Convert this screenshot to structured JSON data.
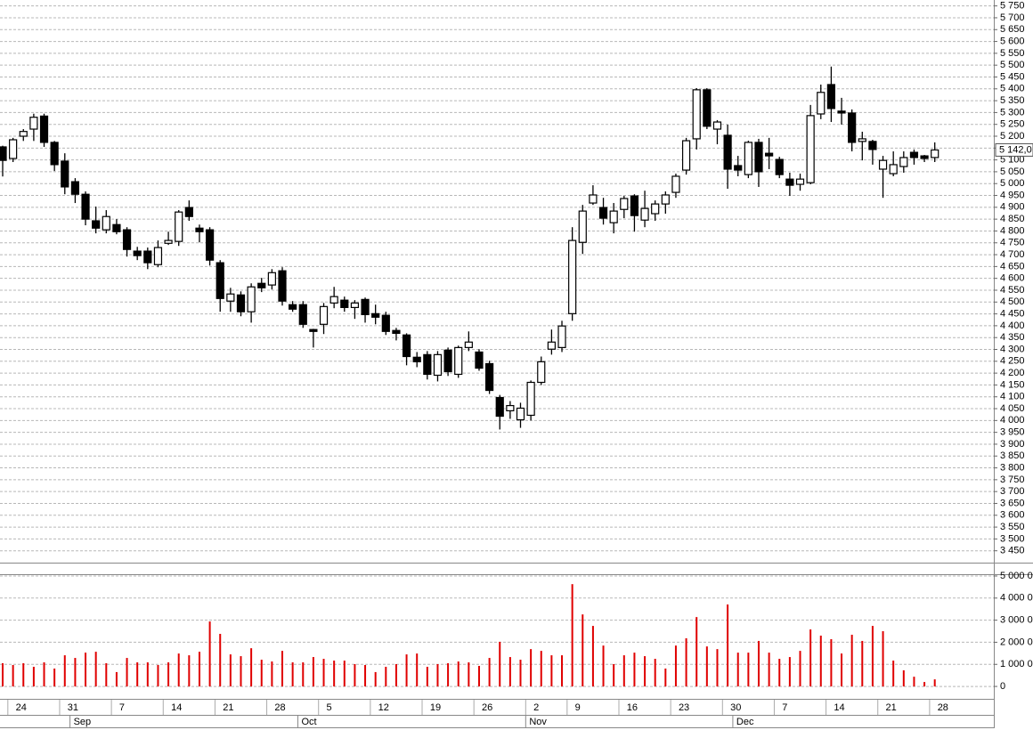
{
  "chart_data": [
    {
      "type": "candlestick",
      "up_color": "#ffffff",
      "down_color": "#000000",
      "grid": true,
      "ylim": [
        3400,
        5775
      ],
      "yticks": [
        {
          "value": 3450,
          "label": "3 450"
        },
        {
          "value": 3500,
          "label": "3 500"
        },
        {
          "value": 3550,
          "label": "3 550"
        },
        {
          "value": 3600,
          "label": "3 600"
        },
        {
          "value": 3650,
          "label": "3 650"
        },
        {
          "value": 3700,
          "label": "3 700"
        },
        {
          "value": 3750,
          "label": "3 750"
        },
        {
          "value": 3800,
          "label": "3 800"
        },
        {
          "value": 3850,
          "label": "3 850"
        },
        {
          "value": 3900,
          "label": "3 900"
        },
        {
          "value": 3950,
          "label": "3 950"
        },
        {
          "value": 4000,
          "label": "4 000"
        },
        {
          "value": 4050,
          "label": "4 050"
        },
        {
          "value": 4100,
          "label": "4 100"
        },
        {
          "value": 4150,
          "label": "4 150"
        },
        {
          "value": 4200,
          "label": "4 200"
        },
        {
          "value": 4250,
          "label": "4 250"
        },
        {
          "value": 4300,
          "label": "4 300"
        },
        {
          "value": 4350,
          "label": "4 350"
        },
        {
          "value": 4400,
          "label": "4 400"
        },
        {
          "value": 4450,
          "label": "4 450"
        },
        {
          "value": 4500,
          "label": "4 500"
        },
        {
          "value": 4550,
          "label": "4 550"
        },
        {
          "value": 4600,
          "label": "4 600"
        },
        {
          "value": 4650,
          "label": "4 650"
        },
        {
          "value": 4700,
          "label": "4 700"
        },
        {
          "value": 4750,
          "label": "4 750"
        },
        {
          "value": 4800,
          "label": "4 800"
        },
        {
          "value": 4850,
          "label": "4 850"
        },
        {
          "value": 4900,
          "label": "4 900"
        },
        {
          "value": 4950,
          "label": "4 950"
        },
        {
          "value": 5000,
          "label": "5 000"
        },
        {
          "value": 5050,
          "label": "5 050"
        },
        {
          "value": 5100,
          "label": "5 100"
        },
        {
          "value": 5150,
          "label": "5 150"
        },
        {
          "value": 5200,
          "label": "5 200"
        },
        {
          "value": 5250,
          "label": "5 250"
        },
        {
          "value": 5300,
          "label": "5 300"
        },
        {
          "value": 5350,
          "label": "5 350"
        },
        {
          "value": 5400,
          "label": "5 400"
        },
        {
          "value": 5450,
          "label": "5 450"
        },
        {
          "value": 5500,
          "label": "5 500"
        },
        {
          "value": 5550,
          "label": "5 550"
        },
        {
          "value": 5600,
          "label": "5 600"
        },
        {
          "value": 5650,
          "label": "5 650"
        },
        {
          "value": 5700,
          "label": "5 700"
        },
        {
          "value": 5750,
          "label": "5 750"
        }
      ],
      "last_price": {
        "value": 5142,
        "label": "5 142,0"
      },
      "open": [
        5155,
        5106,
        5200,
        5230,
        5285,
        5174,
        5095,
        5008,
        4955,
        4843,
        4805,
        4827,
        4805,
        4715,
        4715,
        4658,
        4748,
        4756,
        4899,
        4812,
        4805,
        4666,
        4504,
        4530,
        4459,
        4579,
        4572,
        4632,
        4489,
        4489,
        4384,
        4406,
        4496,
        4508,
        4477,
        4511,
        4451,
        4444,
        4380,
        4361,
        4267,
        4278,
        4191,
        4297,
        4195,
        4308,
        4289,
        4240,
        4097,
        4041,
        4003,
        4022,
        4161,
        4301,
        4308,
        4451,
        4752,
        4918,
        4899,
        4835,
        4891,
        4948,
        4846,
        4873,
        4914,
        4963,
        5057,
        5189,
        5396,
        5230,
        5204,
        5076,
        5038,
        5174,
        5128,
        5102,
        5019,
        4997,
        5004,
        5294,
        5418,
        5306,
        5298,
        5178,
        5178,
        5061,
        5042,
        5072,
        5132,
        5117,
        5110
      ],
      "high": [
        5160,
        5193,
        5230,
        5295,
        5295,
        5180,
        5128,
        5023,
        4967,
        4903,
        4888,
        4850,
        4816,
        4733,
        4730,
        4760,
        4797,
        4888,
        4929,
        4827,
        4816,
        4677,
        4560,
        4545,
        4579,
        4602,
        4639,
        4647,
        4504,
        4504,
        4387,
        4496,
        4564,
        4523,
        4508,
        4519,
        4489,
        4459,
        4391,
        4368,
        4289,
        4293,
        4293,
        4308,
        4316,
        4376,
        4301,
        4252,
        4108,
        4082,
        4075,
        4169,
        4270,
        4384,
        4421,
        4816,
        4910,
        4993,
        4940,
        4918,
        4948,
        4955,
        4970,
        4929,
        4967,
        5042,
        5193,
        5403,
        5403,
        5268,
        5249,
        5117,
        5181,
        5189,
        5193,
        5113,
        5046,
        5042,
        5332,
        5418,
        5494,
        5362,
        5313,
        5219,
        5185,
        5117,
        5136,
        5136,
        5144,
        5121,
        5174
      ],
      "low": [
        5030,
        5091,
        5180,
        5180,
        5155,
        5053,
        4955,
        4918,
        4824,
        4790,
        4790,
        4786,
        4692,
        4677,
        4639,
        4647,
        4741,
        4737,
        4843,
        4752,
        4654,
        4459,
        4459,
        4440,
        4413,
        4542,
        4553,
        4485,
        4459,
        4391,
        4308,
        4365,
        4474,
        4459,
        4429,
        4413,
        4406,
        4361,
        4338,
        4233,
        4225,
        4173,
        4165,
        4188,
        4180,
        4293,
        4210,
        4112,
        3962,
        4007,
        3969,
        4000,
        4150,
        4278,
        4289,
        4421,
        4703,
        4910,
        4827,
        4790,
        4854,
        4797,
        4816,
        4843,
        4873,
        4940,
        5038,
        5144,
        5230,
        5166,
        4978,
        5031,
        5023,
        4986,
        5061,
        5023,
        4948,
        4970,
        4997,
        5272,
        5260,
        5249,
        5136,
        5098,
        5080,
        4940,
        5031,
        5046,
        5080,
        5091,
        5091
      ],
      "close": [
        5098,
        5185,
        5220,
        5280,
        5174,
        5080,
        4986,
        4955,
        4850,
        4812,
        4861,
        4797,
        4722,
        4696,
        4666,
        4730,
        4760,
        4880,
        4861,
        4797,
        4677,
        4515,
        4534,
        4459,
        4564,
        4560,
        4624,
        4504,
        4470,
        4406,
        4376,
        4481,
        4523,
        4477,
        4496,
        4447,
        4436,
        4376,
        4368,
        4270,
        4248,
        4195,
        4278,
        4206,
        4308,
        4331,
        4221,
        4127,
        4018,
        4063,
        4052,
        4161,
        4248,
        4331,
        4399,
        4760,
        4884,
        4952,
        4854,
        4884,
        4937,
        4865,
        4895,
        4914,
        4952,
        5031,
        5181,
        5396,
        5242,
        5260,
        5061,
        5057,
        5174,
        5050,
        5117,
        5038,
        4993,
        5019,
        5287,
        5385,
        5317,
        5298,
        5174,
        5189,
        5144,
        5098,
        5080,
        5110,
        5110,
        5106,
        5142
      ]
    },
    {
      "type": "bar",
      "color": "#e00000",
      "grid": true,
      "ylim": [
        -360,
        5080
      ],
      "yticks": [
        0,
        {
          "value": 1000,
          "label": "1 000 0"
        },
        {
          "value": 2000,
          "label": "2 000 0"
        },
        {
          "value": 3000,
          "label": "3 000 0"
        },
        {
          "value": 4000,
          "label": "4 000 0"
        },
        {
          "value": 5000,
          "label": "5 000 0"
        }
      ],
      "categories": [
        null,
        "24",
        null,
        null,
        null,
        null,
        "31",
        null,
        null,
        null,
        null,
        "7",
        null,
        null,
        null,
        null,
        "14",
        null,
        null,
        null,
        null,
        "21",
        null,
        null,
        null,
        null,
        "28",
        null,
        null,
        null,
        null,
        "5",
        null,
        null,
        null,
        null,
        "12",
        null,
        null,
        null,
        null,
        "19",
        null,
        null,
        null,
        null,
        "26",
        null,
        null,
        null,
        null,
        "2",
        null,
        null,
        null,
        "9",
        null,
        null,
        null,
        null,
        "16",
        null,
        null,
        null,
        null,
        "23",
        null,
        null,
        null,
        null,
        "30",
        null,
        null,
        null,
        null,
        "7",
        null,
        null,
        null,
        null,
        "14",
        null,
        null,
        null,
        null,
        "21",
        null,
        null,
        null,
        null,
        "28"
      ],
      "months": [
        {
          "label": "Sep",
          "start": 7
        },
        {
          "label": "Oct",
          "start": 29
        },
        {
          "label": "Nov",
          "start": 51
        },
        {
          "label": "Dec",
          "start": 71
        }
      ],
      "values": [
        1050,
        970,
        1050,
        890,
        1090,
        810,
        1410,
        1290,
        1530,
        1570,
        1050,
        650,
        1290,
        1090,
        1090,
        970,
        1090,
        1490,
        1410,
        1570,
        2940,
        2380,
        1450,
        1370,
        1730,
        1210,
        1130,
        1610,
        1090,
        1090,
        1330,
        1250,
        1170,
        1170,
        1010,
        970,
        650,
        890,
        1010,
        1450,
        1490,
        890,
        1010,
        1050,
        1130,
        1090,
        930,
        1290,
        2020,
        1330,
        1210,
        1690,
        1610,
        1410,
        1410,
        4630,
        3260,
        2740,
        1850,
        1010,
        1410,
        1530,
        1370,
        1250,
        810,
        1850,
        2180,
        3140,
        1810,
        1690,
        3710,
        1530,
        1530,
        2060,
        1530,
        1250,
        1330,
        1610,
        2580,
        2300,
        2140,
        1490,
        2340,
        2060,
        2740,
        2500,
        1170,
        730,
        440,
        200,
        320
      ]
    }
  ]
}
